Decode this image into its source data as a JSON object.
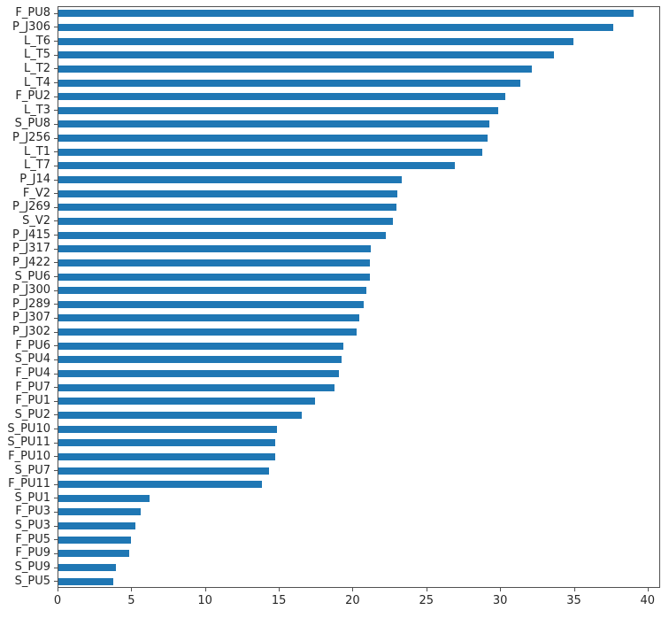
{
  "chart_data": {
    "type": "bar",
    "orientation": "horizontal",
    "title": "",
    "xlabel": "",
    "ylabel": "",
    "grid": false,
    "legend": null,
    "bar_color": "#1f77b4",
    "xlim": [
      0,
      40.85
    ],
    "x_ticks": [
      0,
      5,
      10,
      15,
      20,
      25,
      30,
      35,
      40
    ],
    "categories": [
      "F_PU8",
      "P_J306",
      "L_T6",
      "L_T5",
      "L_T2",
      "L_T4",
      "F_PU2",
      "L_T3",
      "S_PU8",
      "P_J256",
      "L_T1",
      "L_T7",
      "P_J14",
      "F_V2",
      "P_J269",
      "S_V2",
      "P_J415",
      "P_J317",
      "P_J422",
      "S_PU6",
      "P_J300",
      "P_J289",
      "P_J307",
      "P_J302",
      "F_PU6",
      "S_PU4",
      "F_PU4",
      "F_PU7",
      "F_PU1",
      "S_PU2",
      "S_PU10",
      "S_PU11",
      "F_PU10",
      "S_PU7",
      "F_PU11",
      "S_PU1",
      "F_PU3",
      "S_PU3",
      "F_PU5",
      "F_PU9",
      "S_PU9",
      "S_PU5"
    ],
    "values": [
      39.0,
      37.6,
      34.9,
      33.6,
      32.1,
      31.3,
      30.3,
      29.8,
      29.2,
      29.1,
      28.7,
      26.9,
      23.3,
      23.0,
      22.9,
      22.7,
      22.2,
      21.2,
      21.1,
      21.1,
      20.9,
      20.7,
      20.4,
      20.2,
      19.3,
      19.2,
      19.0,
      18.7,
      17.4,
      16.5,
      14.8,
      14.7,
      14.7,
      14.3,
      13.8,
      6.2,
      5.6,
      5.2,
      4.9,
      4.8,
      3.9,
      3.7
    ]
  }
}
